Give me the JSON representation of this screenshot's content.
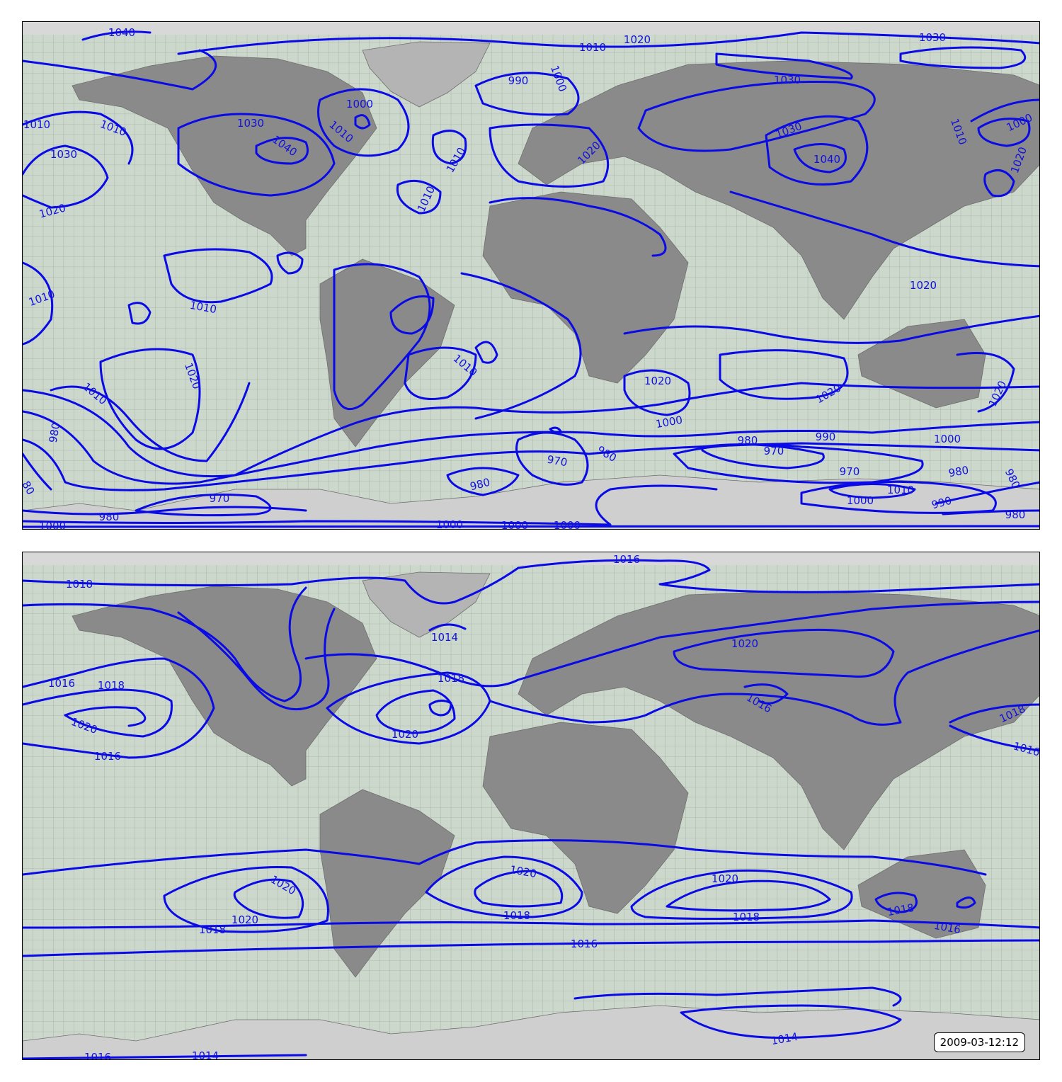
{
  "colors": {
    "ocean": "#ccd8cc",
    "grid": "#8f9e8f",
    "land": "#8a8a8a",
    "land_light": "#b4b4b4",
    "ice": "#d6d6d6",
    "isobar": "#0a0ae6",
    "label": "#1010e0"
  },
  "maps": [
    {
      "name": "top-map",
      "labels": [
        "1040",
        "1020",
        "1010",
        "1030",
        "990",
        "1000",
        "1030",
        "1010",
        "1030",
        "1040",
        "1000",
        "1010",
        "1010",
        "1030",
        "1040",
        "1010",
        "1000",
        "1020",
        "1030",
        "1020",
        "1020",
        "1010",
        "1010",
        "1010",
        "1010",
        "1020",
        "1010",
        "1020",
        "1020",
        "1020",
        "1020",
        "980",
        "1010",
        "980",
        "990",
        "1000",
        "970",
        "970",
        "980",
        "970",
        "980",
        "1000",
        "980",
        "1000",
        "1010",
        "980",
        "970",
        "980",
        "1000",
        "1000",
        "1000",
        "1000",
        "990",
        "980",
        "80"
      ]
    },
    {
      "name": "bottom-map",
      "labels": [
        "1016",
        "1018",
        "1014",
        "1016",
        "1018",
        "1018",
        "1020",
        "1020",
        "1020",
        "1016",
        "1016",
        "1018",
        "1016",
        "1020",
        "1020",
        "1020",
        "1020",
        "1018",
        "1018",
        "1018",
        "1018",
        "1016",
        "1016",
        "1014",
        "1016",
        "1014",
        "1014"
      ],
      "timestamp": "2009-03-12:12"
    }
  ]
}
